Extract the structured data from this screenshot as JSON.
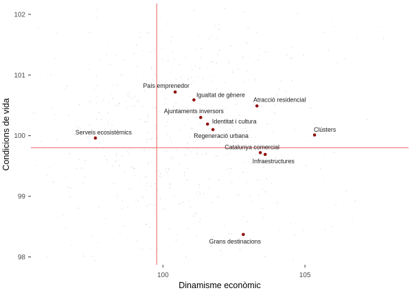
{
  "chart_data": {
    "type": "scatter",
    "title": "",
    "xlabel": "Dinamisme econòmic",
    "ylabel": "Condicions de vida",
    "xlim": [
      95.35,
      108.65
    ],
    "ylim": [
      97.87,
      102.18
    ],
    "x_ticks": [
      "100",
      "105"
    ],
    "x_tick_values": [
      100,
      105
    ],
    "y_ticks": [
      "98",
      "99",
      "100",
      "101",
      "102"
    ],
    "y_tick_values": [
      98,
      99,
      100,
      101,
      102
    ],
    "grid": "off",
    "legend": "none",
    "crosshair": {
      "x": 99.78,
      "y": 99.8
    },
    "series": [
      {
        "name": "labeled-points",
        "points": [
          {
            "label": "País emprenedor",
            "x": 100.43,
            "y": 100.72,
            "label_dx": -13,
            "label_dy": -9
          },
          {
            "label": "Igualtat de gènere",
            "x": 101.09,
            "y": 100.59,
            "label_dx": 39,
            "label_dy": -7
          },
          {
            "label": "Ajuntaments inversors",
            "x": 101.33,
            "y": 100.3,
            "label_dx": -10,
            "label_dy": -9
          },
          {
            "label": "Identitat i cultura",
            "x": 101.57,
            "y": 100.19,
            "label_dx": 39,
            "label_dy": -4
          },
          {
            "label": "Regeneració urbana",
            "x": 101.76,
            "y": 100.1,
            "label_dx": 12,
            "label_dy": 9
          },
          {
            "label": "Atracció residencial",
            "x": 103.31,
            "y": 100.49,
            "label_dx": 33,
            "label_dy": -9
          },
          {
            "label": "Catalunya comercial",
            "x": 103.43,
            "y": 99.72,
            "label_dx": -12,
            "label_dy": -8
          },
          {
            "label": "Infraestructures",
            "x": 103.6,
            "y": 99.69,
            "label_dx": 12,
            "label_dy": 10
          },
          {
            "label": "Clústers",
            "x": 105.34,
            "y": 100.01,
            "label_dx": 15,
            "label_dy": -8
          },
          {
            "label": "Serveis ecosistèmics",
            "x": 97.62,
            "y": 99.96,
            "label_dx": 12,
            "label_dy": -8
          },
          {
            "label": "Grans destinacions",
            "x": 102.83,
            "y": 98.37,
            "label_dx": -12,
            "label_dy": 10
          }
        ]
      }
    ],
    "background_scatter": {
      "count": 520,
      "seed": 11,
      "uniform_fraction": 0.12,
      "x_mean": 100.3,
      "x_sd": 2.3,
      "y_mean": 100.0,
      "y_sd": 1.12
    },
    "colors": {
      "point": "#8f1010",
      "point_label": "#1a1a1a",
      "crosshair": "#f08080",
      "background_point": "#d7d7db",
      "tick_label": "#4d4d4d",
      "tick_mark": "#333333",
      "axis_title": "#000000"
    }
  }
}
